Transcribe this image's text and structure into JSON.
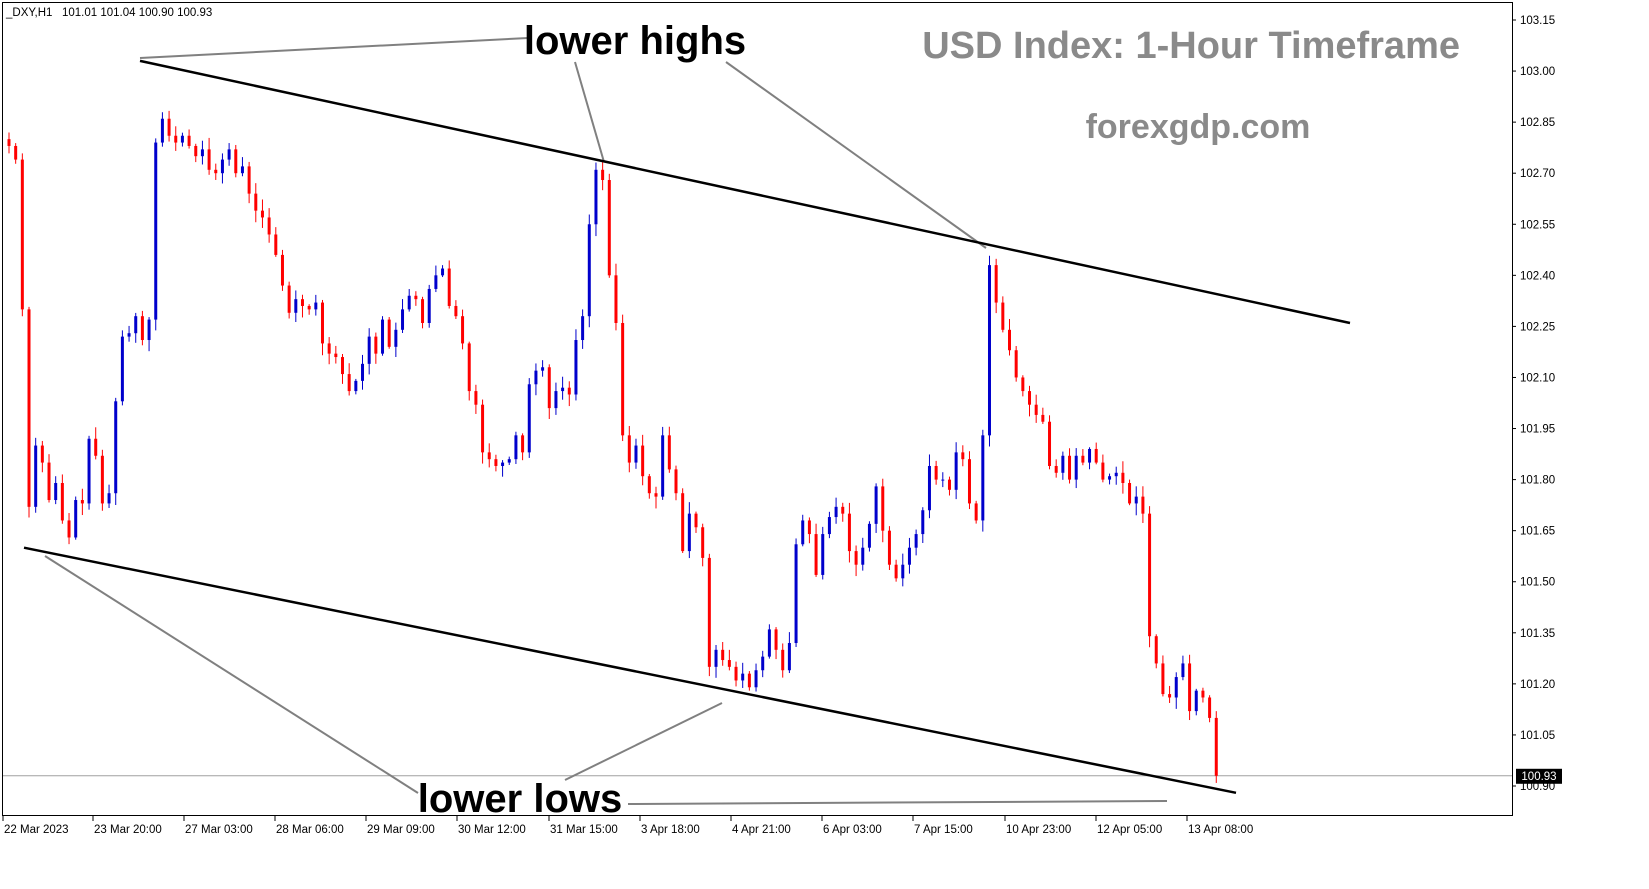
{
  "chart_data": {
    "type": "candlestick",
    "symbol_header": {
      "symbol": "_DXY,H1",
      "ohlc": "101.01 101.04 100.90 100.93"
    },
    "title": "USD Index: 1-Hour Timeframe",
    "watermark": "forexgdp.com",
    "annotations": {
      "upper": "lower highs",
      "lower": "lower lows"
    },
    "current_price": "100.93",
    "y_ticks": [
      "103.15",
      "103.00",
      "102.85",
      "102.70",
      "102.55",
      "102.40",
      "102.25",
      "102.10",
      "101.95",
      "101.80",
      "101.65",
      "101.50",
      "101.35",
      "101.20",
      "101.05",
      "100.90"
    ],
    "x_ticks": [
      "22 Mar 2023",
      "23 Mar 20:00",
      "27 Mar 03:00",
      "28 Mar 06:00",
      "29 Mar 09:00",
      "30 Mar 12:00",
      "31 Mar 15:00",
      "3 Apr 18:00",
      "4 Apr 21:00",
      "6 Apr 03:00",
      "7 Apr 15:00",
      "10 Apr 23:00",
      "12 Apr 05:00",
      "13 Apr 08:00"
    ],
    "ylim": [
      100.82,
      103.2
    ],
    "grid": false,
    "colors": {
      "up": "#0000cc",
      "down": "#ff0000",
      "channel": "#000000",
      "connector": "#808080",
      "price_line": "#a0a0a0",
      "text_grey": "#8a8a8a"
    },
    "channel": {
      "upper_line": [
        [
          0,
          103.03
        ],
        [
          256,
          102.26
        ]
      ],
      "lower_line": [
        [
          0,
          101.6
        ],
        [
          259,
          100.88
        ]
      ]
    },
    "closes": [
      102.78,
      102.74,
      102.3,
      101.72,
      101.9,
      101.85,
      101.74,
      101.79,
      101.68,
      101.63,
      101.74,
      101.73,
      101.92,
      101.87,
      101.73,
      101.76,
      102.03,
      102.22,
      102.23,
      102.28,
      102.21,
      102.27,
      102.79,
      102.86,
      102.81,
      102.79,
      102.81,
      102.78,
      102.75,
      102.77,
      102.71,
      102.7,
      102.74,
      102.77,
      102.7,
      102.72,
      102.64,
      102.59,
      102.57,
      102.52,
      102.46,
      102.37,
      102.29,
      102.33,
      102.31,
      102.3,
      102.32,
      102.2,
      102.17,
      102.16,
      102.11,
      102.06,
      102.09,
      102.14,
      102.22,
      102.17,
      102.27,
      102.19,
      102.24,
      102.3,
      102.34,
      102.33,
      102.26,
      102.36,
      102.4,
      102.42,
      102.31,
      102.28,
      102.2,
      102.06,
      102.02,
      101.88,
      101.86,
      101.84,
      101.85,
      101.86,
      101.93,
      101.88,
      102.08,
      102.12,
      102.13,
      102.01,
      102.06,
      102.07,
      102.05,
      102.21,
      102.28,
      102.55,
      102.71,
      102.68,
      102.4,
      102.26,
      101.93,
      101.85,
      101.9,
      101.81,
      101.76,
      101.75,
      101.93,
      101.83,
      101.76,
      101.59,
      101.7,
      101.66,
      101.57,
      101.25,
      101.3,
      101.27,
      101.25,
      101.21,
      101.23,
      101.19,
      101.24,
      101.28,
      101.36,
      101.3,
      101.24,
      101.32,
      101.61,
      101.68,
      101.64,
      101.52,
      101.64,
      101.69,
      101.72,
      101.7,
      101.59,
      101.55,
      101.6,
      101.67,
      101.78,
      101.65,
      101.55,
      101.51,
      101.55,
      101.6,
      101.64,
      101.71,
      101.84,
      101.8,
      101.8,
      101.77,
      101.88,
      101.86,
      101.73,
      101.68,
      101.93,
      102.43,
      102.32,
      102.24,
      102.18,
      102.1,
      102.06,
      102.02,
      101.99,
      101.97,
      101.84,
      101.82,
      101.87,
      101.8,
      101.87,
      101.85,
      101.89,
      101.85,
      101.8,
      101.81,
      101.82,
      101.79,
      101.73,
      101.75,
      101.7,
      101.34,
      101.26,
      101.17,
      101.16,
      101.22,
      101.26,
      101.12,
      101.18,
      101.16,
      101.1,
      100.93
    ]
  }
}
